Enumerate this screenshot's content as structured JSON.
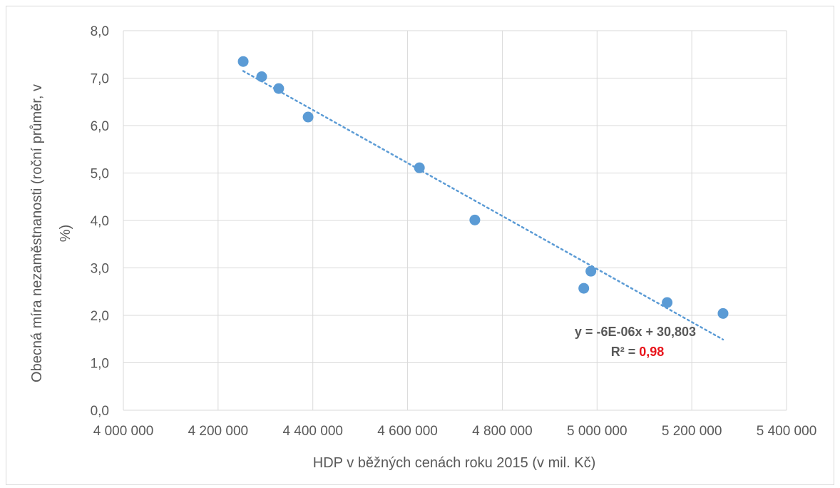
{
  "chart_data": {
    "type": "scatter",
    "title": "",
    "xlabel": "HDP v běžných cenách roku 2015 (v mil. Kč)",
    "ylabel_lines": [
      "Obecná míra nezaměstnanosti (roční průměr, v",
      "%)"
    ],
    "xlim": [
      4000000,
      5400000
    ],
    "ylim": [
      0,
      8
    ],
    "x_ticks": [
      4000000,
      4200000,
      4400000,
      4600000,
      4800000,
      5000000,
      5200000,
      5400000
    ],
    "x_tick_labels": [
      "4 000 000",
      "4 200 000",
      "4 400 000",
      "4 600 000",
      "4 800 000",
      "5 000 000",
      "5 200 000",
      "5 400 000"
    ],
    "y_ticks": [
      0,
      1,
      2,
      3,
      4,
      5,
      6,
      7,
      8
    ],
    "y_tick_labels": [
      "0,0",
      "1,0",
      "2,0",
      "3,0",
      "4,0",
      "5,0",
      "6,0",
      "7,0",
      "8,0"
    ],
    "grid": true,
    "series": [
      {
        "color": "#5b9bd5",
        "points": [
          {
            "x": 4253000,
            "y": 7.35
          },
          {
            "x": 4292000,
            "y": 7.03
          },
          {
            "x": 4328000,
            "y": 6.78
          },
          {
            "x": 4390000,
            "y": 6.18
          },
          {
            "x": 4625000,
            "y": 5.11
          },
          {
            "x": 4742000,
            "y": 4.01
          },
          {
            "x": 4972000,
            "y": 2.57
          },
          {
            "x": 4987000,
            "y": 2.93
          },
          {
            "x": 5148000,
            "y": 2.27
          },
          {
            "x": 5266000,
            "y": 2.04
          }
        ]
      }
    ],
    "trendline": {
      "x_range": [
        4253000,
        5266000
      ],
      "y_range": [
        7.15,
        1.49
      ],
      "color": "#5b9bd5",
      "style": "dotted"
    },
    "annotation": {
      "equation": "y = -6E-06x + 30,803",
      "r2_label": "R² = ",
      "r2_value": "0,98",
      "r2_value_color": "#e8141b"
    }
  }
}
